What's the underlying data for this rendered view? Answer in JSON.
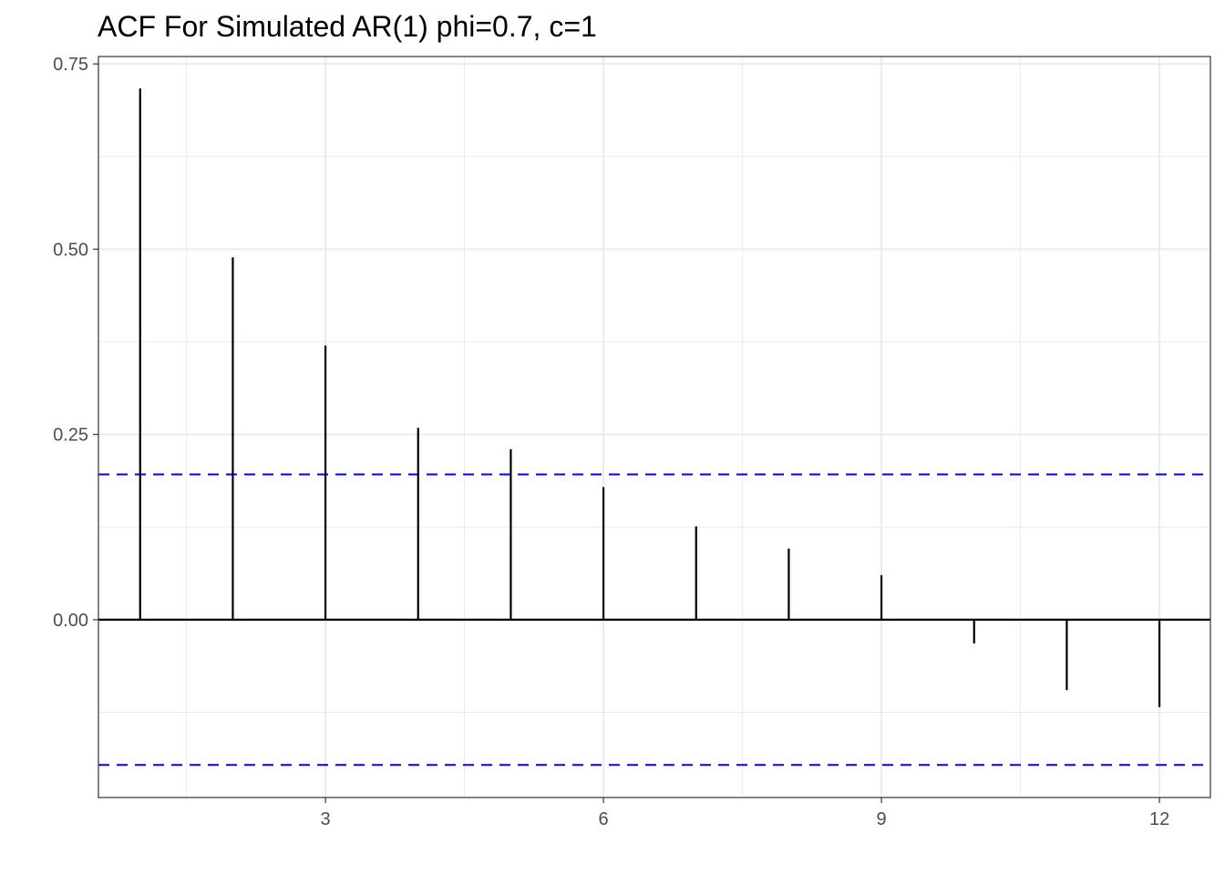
{
  "chart_data": {
    "type": "bar",
    "style": "lollipop-stem",
    "title": "ACF For Simulated AR(1) phi=0.7, c=1",
    "xlabel": "",
    "ylabel": "",
    "x": [
      1,
      2,
      3,
      4,
      5,
      6,
      7,
      8,
      9,
      10,
      11,
      12
    ],
    "values": [
      0.717,
      0.489,
      0.37,
      0.259,
      0.23,
      0.179,
      0.126,
      0.096,
      0.06,
      -0.032,
      -0.095,
      -0.118
    ],
    "xlim": [
      0.55,
      12.55
    ],
    "ylim": [
      -0.24,
      0.76
    ],
    "x_ticks": [
      3,
      6,
      9,
      12
    ],
    "x_tick_labels": [
      "3",
      "6",
      "9",
      "12"
    ],
    "y_ticks": [
      0,
      0.25,
      0.5,
      0.75
    ],
    "y_tick_labels": [
      "0.00",
      "0.25",
      "0.50",
      "0.75"
    ],
    "confidence_bounds": [
      0.196,
      -0.196
    ],
    "grid": true,
    "legend": "none",
    "colors": {
      "stem": "#000000",
      "zero_line": "#000000",
      "bounds": "#0000ff",
      "grid": "#ebebeb",
      "border": "#333333",
      "tick_text": "#4d4d4d"
    }
  }
}
